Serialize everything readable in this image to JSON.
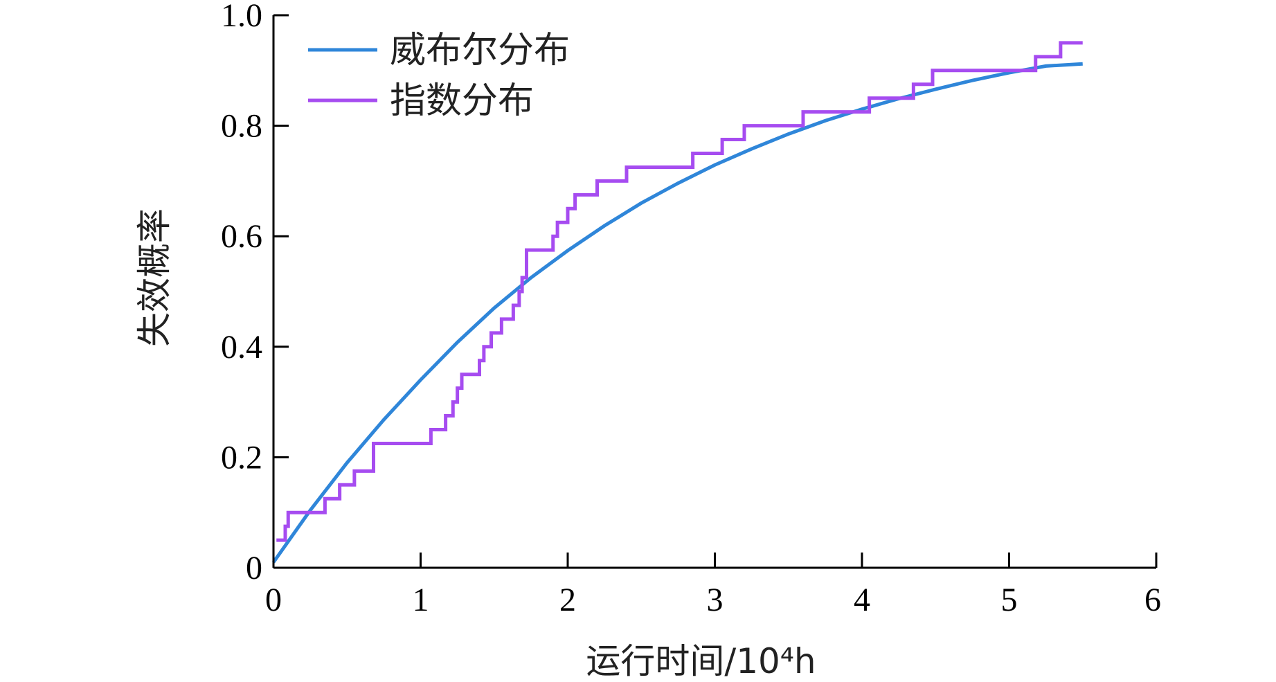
{
  "chart_data": {
    "type": "line",
    "xlabel": "运行时间/10⁴h",
    "ylabel": "失效概率",
    "xlim": [
      0,
      6
    ],
    "ylim": [
      0,
      1.0
    ],
    "x_ticks": [
      "0",
      "1",
      "2",
      "3",
      "4",
      "5",
      "6"
    ],
    "y_ticks": [
      "0",
      "0.2",
      "0.4",
      "0.6",
      "0.8",
      "1.0"
    ],
    "x_tick_values": [
      0,
      1,
      2,
      3,
      4,
      5,
      6
    ],
    "y_tick_values": [
      0,
      0.2,
      0.4,
      0.6,
      0.8,
      1.0
    ],
    "grid": false,
    "legend_position": "top-left",
    "series": [
      {
        "name": "威布尔分布",
        "kind": "curve",
        "color": "#2f86d9",
        "x": [
          0,
          0.25,
          0.5,
          0.75,
          1.0,
          1.25,
          1.5,
          1.75,
          2.0,
          2.25,
          2.5,
          2.75,
          3.0,
          3.25,
          3.5,
          3.75,
          4.0,
          4.25,
          4.5,
          4.75,
          5.0,
          5.25,
          5.5
        ],
        "y": [
          0.01,
          0.104,
          0.19,
          0.268,
          0.34,
          0.408,
          0.47,
          0.525,
          0.574,
          0.619,
          0.66,
          0.696,
          0.729,
          0.758,
          0.785,
          0.809,
          0.83,
          0.849,
          0.866,
          0.882,
          0.896,
          0.908,
          0.912
        ]
      },
      {
        "name": "指数分布",
        "kind": "step",
        "color": "#a64cf0",
        "x": [
          0.02,
          0.08,
          0.1,
          0.35,
          0.45,
          0.55,
          0.68,
          1.07,
          1.17,
          1.22,
          1.25,
          1.28,
          1.4,
          1.43,
          1.48,
          1.55,
          1.63,
          1.67,
          1.69,
          1.72,
          1.9,
          1.93,
          2.0,
          2.05,
          2.2,
          2.4,
          2.85,
          3.05,
          3.2,
          3.6,
          4.05,
          4.35,
          4.48,
          5.18,
          5.35,
          5.5
        ],
        "y": [
          0.05,
          0.075,
          0.1,
          0.125,
          0.15,
          0.175,
          0.225,
          0.25,
          0.275,
          0.3,
          0.325,
          0.35,
          0.375,
          0.4,
          0.425,
          0.45,
          0.475,
          0.5,
          0.525,
          0.575,
          0.6,
          0.625,
          0.65,
          0.675,
          0.7,
          0.725,
          0.75,
          0.775,
          0.8,
          0.825,
          0.85,
          0.875,
          0.9,
          0.925,
          0.95,
          0.95
        ]
      }
    ]
  }
}
